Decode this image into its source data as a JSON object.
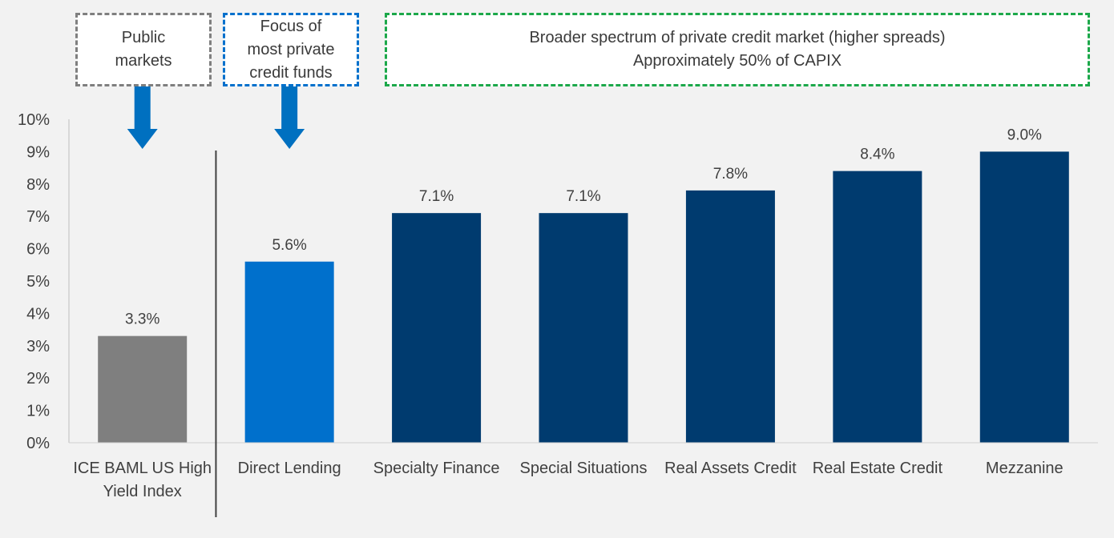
{
  "chart_data": {
    "type": "bar",
    "categories": [
      [
        "ICE BAML US High",
        "Yield Index"
      ],
      [
        "Direct Lending"
      ],
      [
        "Specialty Finance"
      ],
      [
        "Special Situations"
      ],
      [
        "Real Assets Credit"
      ],
      [
        "Real Estate Credit"
      ],
      [
        "Mezzanine"
      ]
    ],
    "values": [
      3.3,
      5.6,
      7.1,
      7.1,
      7.8,
      8.4,
      9.0
    ],
    "data_labels": [
      "3.3%",
      "5.6%",
      "7.1%",
      "7.1%",
      "7.8%",
      "8.4%",
      "9.0%"
    ],
    "bar_colors": [
      "#7f7f7f",
      "#0070cc",
      "#003b6f",
      "#003b6f",
      "#003b6f",
      "#003b6f",
      "#003b6f"
    ],
    "ylim": [
      0,
      10
    ],
    "yticks": [
      0,
      1,
      2,
      3,
      4,
      5,
      6,
      7,
      8,
      9,
      10
    ],
    "ytick_labels": [
      "0%",
      "1%",
      "2%",
      "3%",
      "4%",
      "5%",
      "6%",
      "7%",
      "8%",
      "9%",
      "10%"
    ],
    "grid": false,
    "title": "",
    "xlabel": "",
    "ylabel": ""
  },
  "annotations": {
    "public": {
      "lines": [
        "Public",
        "markets"
      ],
      "border_color": "#7f7f7f"
    },
    "focus": {
      "lines": [
        "Focus of",
        "most private",
        "credit funds"
      ],
      "border_color": "#0070cc"
    },
    "broader": {
      "lines": [
        "Broader spectrum of private credit market (higher spreads)",
        "Approximately 50% of CAPIX"
      ],
      "border_color": "#1ca84a"
    },
    "arrow_color": "#0070c0"
  }
}
